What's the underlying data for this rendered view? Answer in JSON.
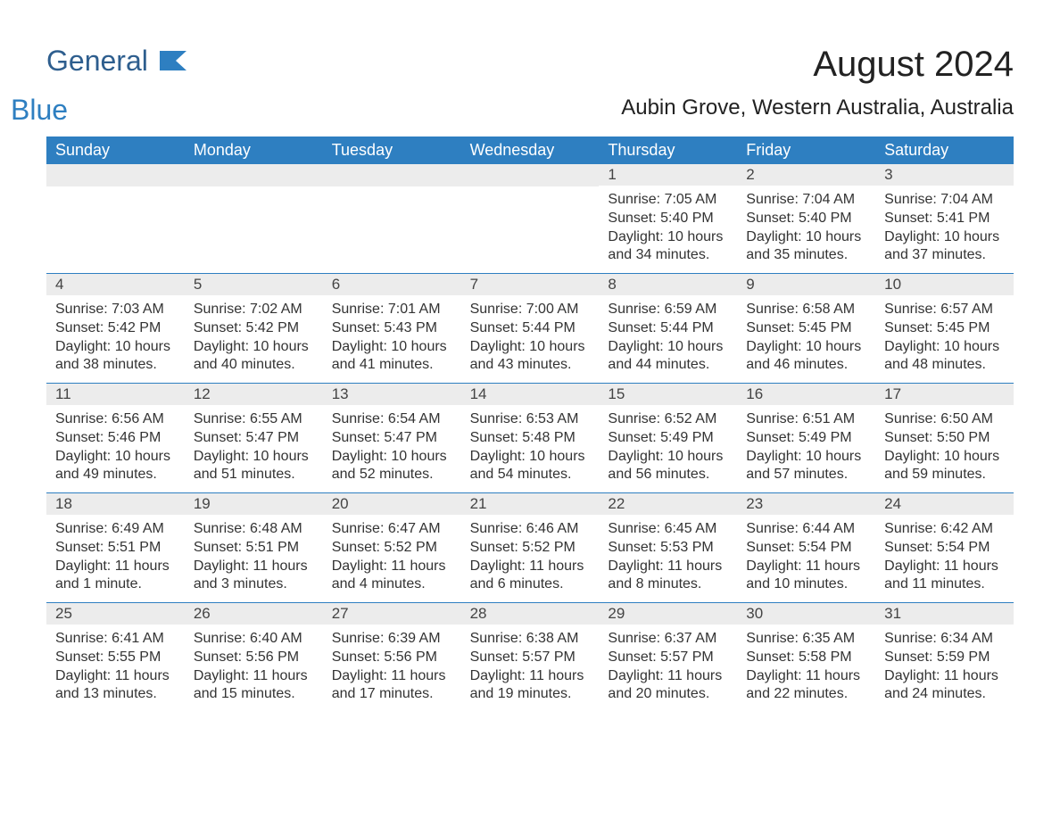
{
  "logo": {
    "general": "General",
    "blue": "Blue"
  },
  "title": "August 2024",
  "location": "Aubin Grove, Western Australia, Australia",
  "colors": {
    "header_bg": "#2e7fc1",
    "header_text": "#ffffff",
    "daynum_bg": "#ececec",
    "row_border": "#2e7fc1",
    "body_text": "#333333",
    "title_text": "#222222",
    "logo_general": "#2e5e8e",
    "logo_blue": "#2e7fc1",
    "page_bg": "#ffffff"
  },
  "typography": {
    "month_title_fontsize": 40,
    "location_fontsize": 24,
    "weekday_fontsize": 18,
    "daynum_fontsize": 17,
    "body_fontsize": 16,
    "logo_fontsize": 32
  },
  "weekdays": [
    "Sunday",
    "Monday",
    "Tuesday",
    "Wednesday",
    "Thursday",
    "Friday",
    "Saturday"
  ],
  "weeks": [
    [
      {
        "day": "",
        "sunrise": "",
        "sunset": "",
        "daylight1": "",
        "daylight2": ""
      },
      {
        "day": "",
        "sunrise": "",
        "sunset": "",
        "daylight1": "",
        "daylight2": ""
      },
      {
        "day": "",
        "sunrise": "",
        "sunset": "",
        "daylight1": "",
        "daylight2": ""
      },
      {
        "day": "",
        "sunrise": "",
        "sunset": "",
        "daylight1": "",
        "daylight2": ""
      },
      {
        "day": "1",
        "sunrise": "Sunrise: 7:05 AM",
        "sunset": "Sunset: 5:40 PM",
        "daylight1": "Daylight: 10 hours",
        "daylight2": "and 34 minutes."
      },
      {
        "day": "2",
        "sunrise": "Sunrise: 7:04 AM",
        "sunset": "Sunset: 5:40 PM",
        "daylight1": "Daylight: 10 hours",
        "daylight2": "and 35 minutes."
      },
      {
        "day": "3",
        "sunrise": "Sunrise: 7:04 AM",
        "sunset": "Sunset: 5:41 PM",
        "daylight1": "Daylight: 10 hours",
        "daylight2": "and 37 minutes."
      }
    ],
    [
      {
        "day": "4",
        "sunrise": "Sunrise: 7:03 AM",
        "sunset": "Sunset: 5:42 PM",
        "daylight1": "Daylight: 10 hours",
        "daylight2": "and 38 minutes."
      },
      {
        "day": "5",
        "sunrise": "Sunrise: 7:02 AM",
        "sunset": "Sunset: 5:42 PM",
        "daylight1": "Daylight: 10 hours",
        "daylight2": "and 40 minutes."
      },
      {
        "day": "6",
        "sunrise": "Sunrise: 7:01 AM",
        "sunset": "Sunset: 5:43 PM",
        "daylight1": "Daylight: 10 hours",
        "daylight2": "and 41 minutes."
      },
      {
        "day": "7",
        "sunrise": "Sunrise: 7:00 AM",
        "sunset": "Sunset: 5:44 PM",
        "daylight1": "Daylight: 10 hours",
        "daylight2": "and 43 minutes."
      },
      {
        "day": "8",
        "sunrise": "Sunrise: 6:59 AM",
        "sunset": "Sunset: 5:44 PM",
        "daylight1": "Daylight: 10 hours",
        "daylight2": "and 44 minutes."
      },
      {
        "day": "9",
        "sunrise": "Sunrise: 6:58 AM",
        "sunset": "Sunset: 5:45 PM",
        "daylight1": "Daylight: 10 hours",
        "daylight2": "and 46 minutes."
      },
      {
        "day": "10",
        "sunrise": "Sunrise: 6:57 AM",
        "sunset": "Sunset: 5:45 PM",
        "daylight1": "Daylight: 10 hours",
        "daylight2": "and 48 minutes."
      }
    ],
    [
      {
        "day": "11",
        "sunrise": "Sunrise: 6:56 AM",
        "sunset": "Sunset: 5:46 PM",
        "daylight1": "Daylight: 10 hours",
        "daylight2": "and 49 minutes."
      },
      {
        "day": "12",
        "sunrise": "Sunrise: 6:55 AM",
        "sunset": "Sunset: 5:47 PM",
        "daylight1": "Daylight: 10 hours",
        "daylight2": "and 51 minutes."
      },
      {
        "day": "13",
        "sunrise": "Sunrise: 6:54 AM",
        "sunset": "Sunset: 5:47 PM",
        "daylight1": "Daylight: 10 hours",
        "daylight2": "and 52 minutes."
      },
      {
        "day": "14",
        "sunrise": "Sunrise: 6:53 AM",
        "sunset": "Sunset: 5:48 PM",
        "daylight1": "Daylight: 10 hours",
        "daylight2": "and 54 minutes."
      },
      {
        "day": "15",
        "sunrise": "Sunrise: 6:52 AM",
        "sunset": "Sunset: 5:49 PM",
        "daylight1": "Daylight: 10 hours",
        "daylight2": "and 56 minutes."
      },
      {
        "day": "16",
        "sunrise": "Sunrise: 6:51 AM",
        "sunset": "Sunset: 5:49 PM",
        "daylight1": "Daylight: 10 hours",
        "daylight2": "and 57 minutes."
      },
      {
        "day": "17",
        "sunrise": "Sunrise: 6:50 AM",
        "sunset": "Sunset: 5:50 PM",
        "daylight1": "Daylight: 10 hours",
        "daylight2": "and 59 minutes."
      }
    ],
    [
      {
        "day": "18",
        "sunrise": "Sunrise: 6:49 AM",
        "sunset": "Sunset: 5:51 PM",
        "daylight1": "Daylight: 11 hours",
        "daylight2": "and 1 minute."
      },
      {
        "day": "19",
        "sunrise": "Sunrise: 6:48 AM",
        "sunset": "Sunset: 5:51 PM",
        "daylight1": "Daylight: 11 hours",
        "daylight2": "and 3 minutes."
      },
      {
        "day": "20",
        "sunrise": "Sunrise: 6:47 AM",
        "sunset": "Sunset: 5:52 PM",
        "daylight1": "Daylight: 11 hours",
        "daylight2": "and 4 minutes."
      },
      {
        "day": "21",
        "sunrise": "Sunrise: 6:46 AM",
        "sunset": "Sunset: 5:52 PM",
        "daylight1": "Daylight: 11 hours",
        "daylight2": "and 6 minutes."
      },
      {
        "day": "22",
        "sunrise": "Sunrise: 6:45 AM",
        "sunset": "Sunset: 5:53 PM",
        "daylight1": "Daylight: 11 hours",
        "daylight2": "and 8 minutes."
      },
      {
        "day": "23",
        "sunrise": "Sunrise: 6:44 AM",
        "sunset": "Sunset: 5:54 PM",
        "daylight1": "Daylight: 11 hours",
        "daylight2": "and 10 minutes."
      },
      {
        "day": "24",
        "sunrise": "Sunrise: 6:42 AM",
        "sunset": "Sunset: 5:54 PM",
        "daylight1": "Daylight: 11 hours",
        "daylight2": "and 11 minutes."
      }
    ],
    [
      {
        "day": "25",
        "sunrise": "Sunrise: 6:41 AM",
        "sunset": "Sunset: 5:55 PM",
        "daylight1": "Daylight: 11 hours",
        "daylight2": "and 13 minutes."
      },
      {
        "day": "26",
        "sunrise": "Sunrise: 6:40 AM",
        "sunset": "Sunset: 5:56 PM",
        "daylight1": "Daylight: 11 hours",
        "daylight2": "and 15 minutes."
      },
      {
        "day": "27",
        "sunrise": "Sunrise: 6:39 AM",
        "sunset": "Sunset: 5:56 PM",
        "daylight1": "Daylight: 11 hours",
        "daylight2": "and 17 minutes."
      },
      {
        "day": "28",
        "sunrise": "Sunrise: 6:38 AM",
        "sunset": "Sunset: 5:57 PM",
        "daylight1": "Daylight: 11 hours",
        "daylight2": "and 19 minutes."
      },
      {
        "day": "29",
        "sunrise": "Sunrise: 6:37 AM",
        "sunset": "Sunset: 5:57 PM",
        "daylight1": "Daylight: 11 hours",
        "daylight2": "and 20 minutes."
      },
      {
        "day": "30",
        "sunrise": "Sunrise: 6:35 AM",
        "sunset": "Sunset: 5:58 PM",
        "daylight1": "Daylight: 11 hours",
        "daylight2": "and 22 minutes."
      },
      {
        "day": "31",
        "sunrise": "Sunrise: 6:34 AM",
        "sunset": "Sunset: 5:59 PM",
        "daylight1": "Daylight: 11 hours",
        "daylight2": "and 24 minutes."
      }
    ]
  ]
}
